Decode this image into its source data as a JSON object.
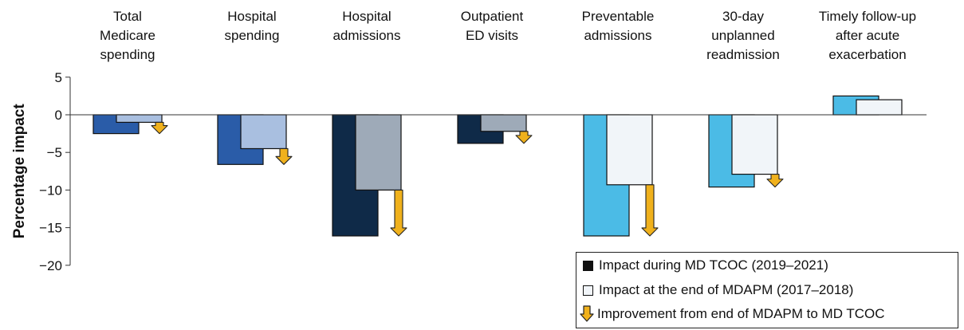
{
  "chart_data": {
    "type": "bar",
    "ylabel": "Percentage impact",
    "ylim": [
      -20,
      5
    ],
    "yticks": [
      "5",
      "0",
      "−5",
      "−10",
      "−15",
      "−20"
    ],
    "ytick_values": [
      5,
      0,
      -5,
      -10,
      -15,
      -20
    ],
    "categories": [
      [
        "Total",
        "Medicare",
        "spending"
      ],
      [
        "Hospital",
        "spending"
      ],
      [
        "Hospital",
        "admissions"
      ],
      [
        "Outpatient",
        "ED visits"
      ],
      [
        "Preventable",
        "admissions"
      ],
      [
        "30-day",
        "unplanned",
        "readmission"
      ],
      [
        "Timely follow-up",
        "after acute",
        "exacerbation"
      ]
    ],
    "series": [
      {
        "name": "Impact during MD TCOC (2019–2021)",
        "values": [
          -2.5,
          -6.6,
          -16.1,
          -3.8,
          -16.1,
          -9.6,
          2.5
        ]
      },
      {
        "name": "Impact at the end of MDAPM (2017–2018)",
        "values": [
          -1.0,
          -4.5,
          -10.0,
          -2.2,
          -9.3,
          -7.9,
          2.0
        ]
      }
    ],
    "arrows": {
      "name": "Improvement from end of MDAPM to MD TCOC",
      "from": [
        -1.0,
        -4.5,
        -10.0,
        -2.2,
        -9.3,
        -7.9,
        null
      ],
      "to": [
        -2.5,
        -6.6,
        -16.1,
        -3.8,
        -16.1,
        -9.6,
        null
      ]
    },
    "colors": {
      "series1": [
        "#2a5ca8",
        "#2a5ca8",
        "#0f2a48",
        "#0f2a48",
        "#4bbbe6",
        "#4bbbe6",
        "#4bbbe6"
      ],
      "series2": [
        "#a9bfe0",
        "#a9bfe0",
        "#9eaab8",
        "#9eaab8",
        "#f1f5f9",
        "#f1f5f9",
        "#f1f5f9"
      ],
      "arrow": "#f0b11c",
      "axis": "#333333",
      "legend_dark": "#111111",
      "legend_light": "#f1f5f9"
    },
    "legend": {
      "placement": "bottom-right",
      "items": [
        {
          "label": "Impact during MD TCOC (2019–2021)",
          "swatch": "dark"
        },
        {
          "label": "Impact at the end of MDAPM (2017–2018)",
          "swatch": "light"
        },
        {
          "label": "Improvement from end of MDAPM to MD TCOC",
          "swatch": "arrow"
        }
      ]
    }
  }
}
